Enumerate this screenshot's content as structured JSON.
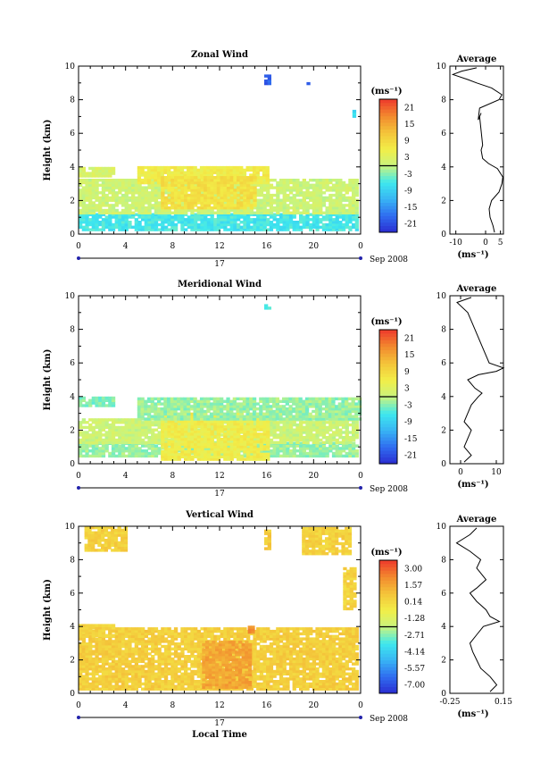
{
  "chart_data": [
    {
      "type": "heatmap",
      "title": "Zonal Wind",
      "ylabel": "Height (km)",
      "xlabel": "",
      "x_ticks": [
        "0",
        "4",
        "8",
        "12",
        "16",
        "20",
        "0"
      ],
      "y_ticks": [
        "0",
        "2",
        "4",
        "6",
        "8",
        "10"
      ],
      "xlim": [
        0,
        24
      ],
      "ylim": [
        0,
        10
      ],
      "date_label": "17",
      "date_suffix": "Sep 2008",
      "colorbar": {
        "unit": "(ms⁻¹)",
        "ticks": [
          "21",
          "15",
          "9",
          "3",
          "-3",
          "-9",
          "-15",
          "-21"
        ],
        "range": [
          -24,
          24
        ]
      },
      "data_regions": [
        {
          "x": [
            0,
            23.8
          ],
          "y": [
            0.2,
            1.2
          ],
          "value": -6
        },
        {
          "x": [
            0,
            23.8
          ],
          "y": [
            1.2,
            3.2
          ],
          "value": 1
        },
        {
          "x": [
            0,
            3
          ],
          "y": [
            3.4,
            3.9
          ],
          "value": 2
        },
        {
          "x": [
            5,
            16
          ],
          "y": [
            3.0,
            4.0
          ],
          "value": 6
        },
        {
          "x": [
            7,
            15
          ],
          "y": [
            1.5,
            3.4
          ],
          "value": 8
        },
        {
          "x": [
            15.8,
            16.3
          ],
          "y": [
            8.9,
            9.4
          ],
          "value": -19
        },
        {
          "x": [
            19.4,
            19.6
          ],
          "y": [
            8.9,
            9.1
          ],
          "value": -18
        },
        {
          "x": [
            23.3,
            23.5
          ],
          "y": [
            6.8,
            7.3
          ],
          "value": -8
        }
      ],
      "average": {
        "title": "Average",
        "xlabel": "(ms⁻¹)",
        "x_ticks": [
          "-10",
          "0",
          "5"
        ],
        "xlim": [
          -12,
          6
        ],
        "profile": [
          [
            3,
            0.1
          ],
          [
            2.5,
            0.5
          ],
          [
            1.5,
            1.0
          ],
          [
            1.2,
            1.5
          ],
          [
            2.0,
            2.0
          ],
          [
            4.5,
            2.5
          ],
          [
            5.5,
            3.0
          ],
          [
            5.8,
            3.4
          ],
          [
            4.0,
            3.9
          ],
          [
            1.0,
            4.2
          ],
          [
            -1.0,
            4.5
          ],
          [
            -1.5,
            5.0
          ],
          [
            -1.0,
            5.3
          ],
          [
            -2.0,
            7.0
          ],
          [
            -1.5,
            7.2
          ],
          [
            -2.5,
            6.8
          ],
          [
            -2.0,
            7.5
          ],
          [
            4.5,
            8.0
          ],
          [
            5.5,
            8.3
          ],
          [
            2.0,
            8.7
          ],
          [
            -3.0,
            9.0
          ],
          [
            -6.0,
            9.2
          ],
          [
            -11.0,
            9.5
          ],
          [
            -8.0,
            9.7
          ],
          [
            -3.0,
            9.9
          ]
        ]
      }
    },
    {
      "type": "heatmap",
      "title": "Meridional Wind",
      "ylabel": "Height (km)",
      "xlabel": "",
      "x_ticks": [
        "0",
        "4",
        "8",
        "12",
        "16",
        "20",
        "0"
      ],
      "y_ticks": [
        "0",
        "2",
        "4",
        "6",
        "8",
        "10"
      ],
      "xlim": [
        0,
        24
      ],
      "ylim": [
        0,
        10
      ],
      "date_label": "17",
      "date_suffix": "Sep 2008",
      "colorbar": {
        "unit": "(ms⁻¹)",
        "ticks": [
          "21",
          "15",
          "9",
          "3",
          "-3",
          "-9",
          "-15",
          "-21"
        ],
        "range": [
          -24,
          24
        ]
      },
      "data_regions": [
        {
          "x": [
            0,
            23.8
          ],
          "y": [
            0.4,
            1.2
          ],
          "value": -2
        },
        {
          "x": [
            0,
            23.8
          ],
          "y": [
            1.2,
            2.6
          ],
          "value": 1
        },
        {
          "x": [
            7,
            16
          ],
          "y": [
            0.2,
            3.0
          ],
          "value": 6
        },
        {
          "x": [
            0,
            3
          ],
          "y": [
            3.4,
            3.9
          ],
          "value": -3
        },
        {
          "x": [
            5,
            23.8
          ],
          "y": [
            2.6,
            3.8
          ],
          "value": -2
        },
        {
          "x": [
            15.8,
            16.1
          ],
          "y": [
            9.2,
            9.5
          ],
          "value": -5
        }
      ],
      "average": {
        "title": "Average",
        "xlabel": "(ms⁻¹)",
        "x_ticks": [
          "0",
          "10"
        ],
        "xlim": [
          -3,
          12
        ],
        "profile": [
          [
            1,
            0.1
          ],
          [
            3,
            0.5
          ],
          [
            1,
            1.0
          ],
          [
            2,
            1.5
          ],
          [
            3,
            2.0
          ],
          [
            1,
            2.5
          ],
          [
            2,
            3.0
          ],
          [
            3,
            3.5
          ],
          [
            5,
            4.0
          ],
          [
            6,
            4.2
          ],
          [
            4,
            4.5
          ],
          [
            2,
            5.0
          ],
          [
            5,
            5.3
          ],
          [
            10,
            5.5
          ],
          [
            12,
            5.7
          ],
          [
            8,
            6.0
          ],
          [
            6,
            7.0
          ],
          [
            4,
            8.0
          ],
          [
            2,
            9.0
          ],
          [
            -1,
            9.6
          ],
          [
            3,
            9.9
          ]
        ]
      }
    },
    {
      "type": "heatmap",
      "title": "Vertical Wind",
      "ylabel": "Height (km)",
      "xlabel": "Local Time",
      "x_ticks": [
        "0",
        "4",
        "8",
        "12",
        "16",
        "20",
        "0"
      ],
      "y_ticks": [
        "0",
        "2",
        "4",
        "6",
        "8",
        "10"
      ],
      "xlim": [
        0,
        24
      ],
      "ylim": [
        0,
        10
      ],
      "date_label": "17",
      "date_suffix": "Sep 2008",
      "colorbar": {
        "unit": "(ms⁻¹)",
        "ticks": [
          "3.00",
          "1.57",
          "0.14",
          "-1.28",
          "-2.71",
          "-4.14",
          "-5.57",
          "-7.00"
        ],
        "range": [
          -7.7,
          3.7
        ]
      },
      "data_regions": [
        {
          "x": [
            0,
            23.8
          ],
          "y": [
            0.2,
            3.8
          ],
          "value": 0.5
        },
        {
          "x": [
            0,
            3
          ],
          "y": [
            3.4,
            4.0
          ],
          "value": 0.4
        },
        {
          "x": [
            10.5,
            14.5
          ],
          "y": [
            0.3,
            3.0
          ],
          "value": 1.6
        },
        {
          "x": [
            14.4,
            14.8
          ],
          "y": [
            3.6,
            4.0
          ],
          "value": 2.2
        },
        {
          "x": [
            0.5,
            4
          ],
          "y": [
            8.5,
            10.0
          ],
          "value": 0.4
        },
        {
          "x": [
            15.8,
            16.2
          ],
          "y": [
            8.6,
            9.8
          ],
          "value": 0.6
        },
        {
          "x": [
            19,
            23
          ],
          "y": [
            8.3,
            9.9
          ],
          "value": 0.4
        },
        {
          "x": [
            22.5,
            23.5
          ],
          "y": [
            5.0,
            7.5
          ],
          "value": 0.3
        }
      ],
      "average": {
        "title": "Average",
        "xlabel": "(ms⁻¹)",
        "x_ticks": [
          "-0.25",
          "0.15"
        ],
        "xlim": [
          -0.25,
          0.15
        ],
        "profile": [
          [
            0.05,
            0.1
          ],
          [
            0.1,
            0.5
          ],
          [
            0.05,
            1.0
          ],
          [
            -0.02,
            1.5
          ],
          [
            -0.05,
            2.0
          ],
          [
            -0.08,
            2.5
          ],
          [
            -0.1,
            3.0
          ],
          [
            -0.05,
            3.5
          ],
          [
            0.0,
            4.0
          ],
          [
            0.12,
            4.3
          ],
          [
            0.05,
            4.6
          ],
          [
            0.02,
            5.0
          ],
          [
            -0.05,
            5.5
          ],
          [
            -0.1,
            6.0
          ],
          [
            -0.05,
            6.3
          ],
          [
            0.02,
            6.8
          ],
          [
            -0.05,
            7.5
          ],
          [
            -0.02,
            8.0
          ],
          [
            -0.1,
            8.5
          ],
          [
            -0.2,
            9.0
          ],
          [
            -0.1,
            9.5
          ],
          [
            -0.05,
            9.9
          ]
        ]
      }
    }
  ]
}
